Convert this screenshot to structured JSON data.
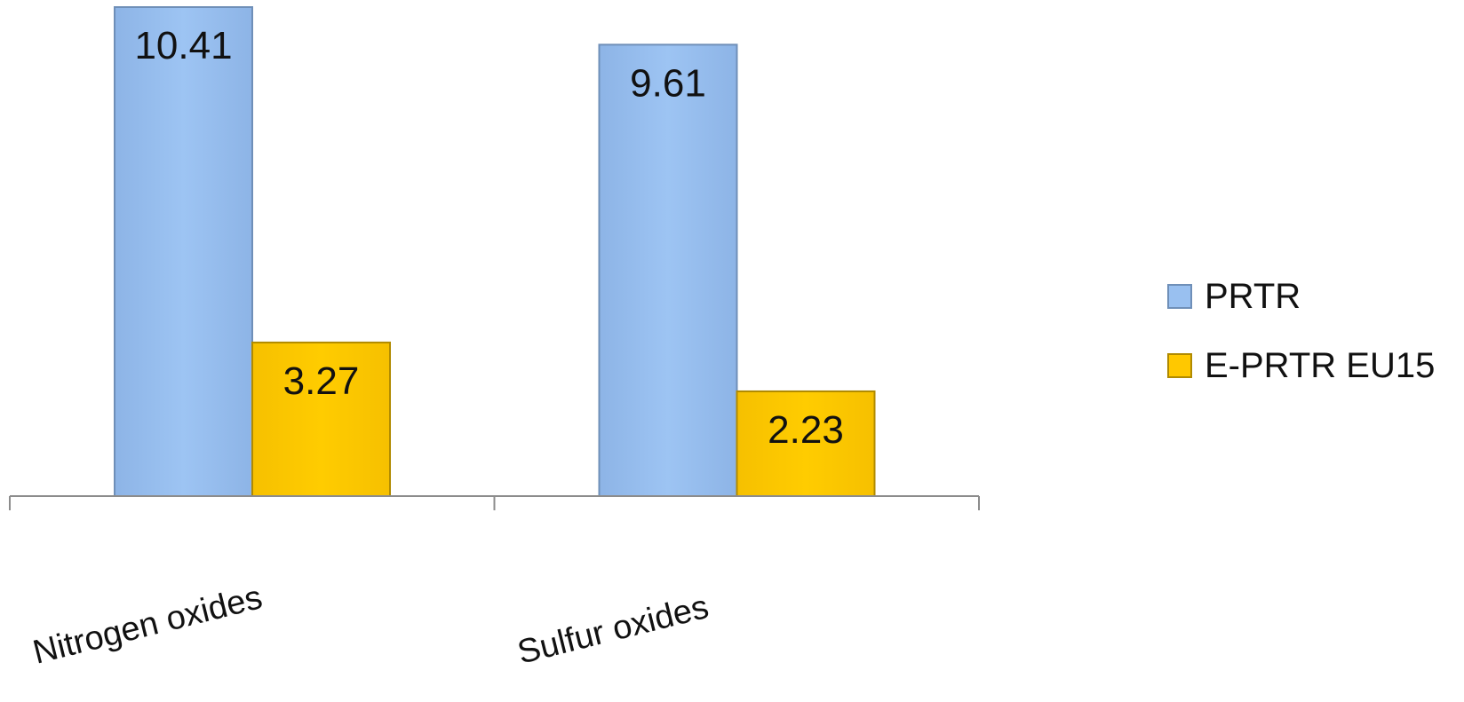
{
  "chart_data": {
    "type": "bar",
    "categories": [
      "Nitrogen oxides",
      "Sulfur oxides"
    ],
    "series": [
      {
        "name": " PRTR",
        "values": [
          10.41,
          9.61
        ],
        "color": "#99C0F0",
        "edge": "#6F8FB8"
      },
      {
        "name": "E-PRTR EU15",
        "values": [
          3.27,
          2.23
        ],
        "color": "#FFC800",
        "edge": "#B08A00"
      }
    ],
    "value_labels": [
      [
        "10.41",
        "9.61"
      ],
      [
        "3.27",
        "2.23"
      ]
    ],
    "ylim": [
      0,
      10.41
    ],
    "grid": false,
    "legend_position": "right",
    "title": "",
    "xlabel": "",
    "ylabel": ""
  },
  "legend": {
    "items": [
      {
        "label": " PRTR",
        "color": "#99C0F0",
        "edge": "#6F8FB8"
      },
      {
        "label": "E-PRTR EU15",
        "color": "#FFC800",
        "edge": "#B08A00"
      }
    ]
  }
}
